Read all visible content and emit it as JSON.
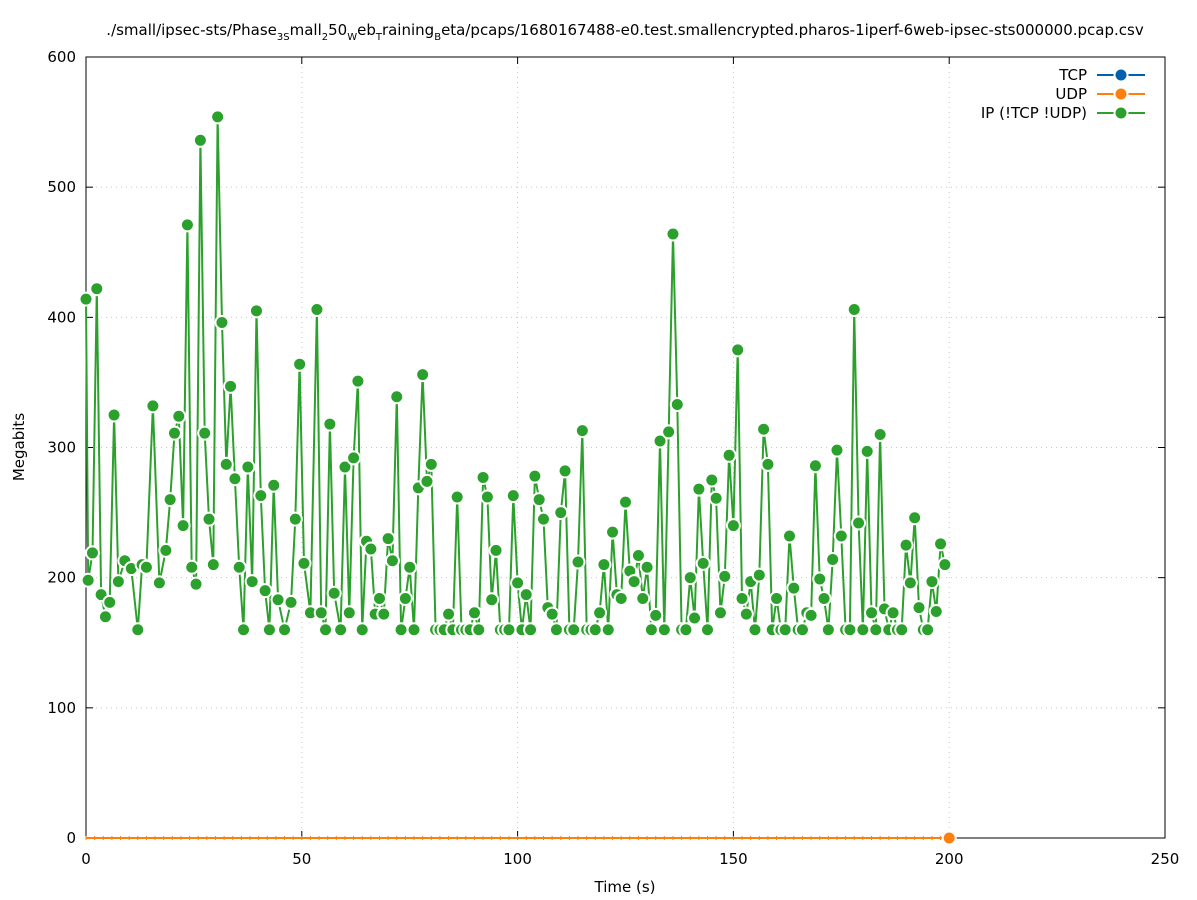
{
  "chart_data": {
    "type": "line",
    "title": {
      "parts": [
        {
          "text": "./small/ipsec-sts/Phase",
          "sub": false
        },
        {
          "text": "3S",
          "sub": true
        },
        {
          "text": "mall",
          "sub": false
        },
        {
          "text": "2",
          "sub": true
        },
        {
          "text": "50",
          "sub": false
        },
        {
          "text": "W",
          "sub": true
        },
        {
          "text": "eb",
          "sub": false
        },
        {
          "text": "T",
          "sub": true
        },
        {
          "text": "raining",
          "sub": false
        },
        {
          "text": "B",
          "sub": true
        },
        {
          "text": "eta/pcaps/1680167488-e0.test.smallencrypted.pharos-1iperf-6web-ipsec-sts000000.pcap.csv",
          "sub": false
        }
      ]
    },
    "xlabel": "Time (s)",
    "ylabel": "Megabits",
    "xlim": [
      0,
      250
    ],
    "ylim": [
      0,
      600
    ],
    "xticks": [
      0,
      50,
      100,
      150,
      200,
      250
    ],
    "yticks": [
      0,
      100,
      200,
      300,
      400,
      500,
      600
    ],
    "grid": true,
    "legend_position": "top-right",
    "series": [
      {
        "name": "TCP",
        "color": "#0060ad",
        "values": []
      },
      {
        "name": "UDP",
        "color": "#ff7f0e",
        "values": [
          [
            0,
            0
          ],
          [
            2,
            0
          ],
          [
            4,
            0
          ],
          [
            6,
            0
          ],
          [
            8,
            0
          ],
          [
            10,
            0
          ],
          [
            12,
            0
          ],
          [
            14,
            0
          ],
          [
            16,
            0
          ],
          [
            18,
            0
          ],
          [
            20,
            0
          ],
          [
            22,
            0
          ],
          [
            24,
            0
          ],
          [
            26,
            0
          ],
          [
            28,
            0
          ],
          [
            30,
            0
          ],
          [
            32,
            0
          ],
          [
            34,
            0
          ],
          [
            36,
            0
          ],
          [
            38,
            0
          ],
          [
            40,
            0
          ],
          [
            42,
            0
          ],
          [
            44,
            0
          ],
          [
            46,
            0
          ],
          [
            48,
            0
          ],
          [
            50,
            0
          ],
          [
            52,
            0
          ],
          [
            54,
            0
          ],
          [
            56,
            0
          ],
          [
            58,
            0
          ],
          [
            60,
            0
          ],
          [
            62,
            0
          ],
          [
            64,
            0
          ],
          [
            66,
            0
          ],
          [
            68,
            0
          ],
          [
            70,
            0
          ],
          [
            72,
            0
          ],
          [
            74,
            0
          ],
          [
            76,
            0
          ],
          [
            78,
            0
          ],
          [
            80,
            0
          ],
          [
            82,
            0
          ],
          [
            84,
            0
          ],
          [
            86,
            0
          ],
          [
            88,
            0
          ],
          [
            90,
            0
          ],
          [
            92,
            0
          ],
          [
            94,
            0
          ],
          [
            96,
            0
          ],
          [
            98,
            0
          ],
          [
            100,
            0
          ],
          [
            102,
            0
          ],
          [
            104,
            0
          ],
          [
            106,
            0
          ],
          [
            108,
            0
          ],
          [
            110,
            0
          ],
          [
            112,
            0
          ],
          [
            114,
            0
          ],
          [
            116,
            0
          ],
          [
            118,
            0
          ],
          [
            120,
            0
          ],
          [
            122,
            0
          ],
          [
            124,
            0
          ],
          [
            126,
            0
          ],
          [
            128,
            0
          ],
          [
            130,
            0
          ],
          [
            132,
            0
          ],
          [
            134,
            0
          ],
          [
            136,
            0
          ],
          [
            138,
            0
          ],
          [
            140,
            0
          ],
          [
            142,
            0
          ],
          [
            144,
            0
          ],
          [
            146,
            0
          ],
          [
            148,
            0
          ],
          [
            150,
            0
          ],
          [
            152,
            0
          ],
          [
            154,
            0
          ],
          [
            156,
            0
          ],
          [
            158,
            0
          ],
          [
            160,
            0
          ],
          [
            162,
            0
          ],
          [
            164,
            0
          ],
          [
            166,
            0
          ],
          [
            168,
            0
          ],
          [
            170,
            0
          ],
          [
            172,
            0
          ],
          [
            174,
            0
          ],
          [
            176,
            0
          ],
          [
            178,
            0
          ],
          [
            180,
            0
          ],
          [
            182,
            0
          ],
          [
            184,
            0
          ],
          [
            186,
            0
          ],
          [
            188,
            0
          ],
          [
            190,
            0
          ],
          [
            192,
            0
          ],
          [
            194,
            0
          ],
          [
            196,
            0
          ],
          [
            198,
            0
          ],
          [
            200,
            0
          ]
        ]
      },
      {
        "name": "IP (!TCP  !UDP)",
        "color": "#2ca02c",
        "values": [
          [
            0,
            414
          ],
          [
            0.5,
            198
          ],
          [
            1.5,
            219
          ],
          [
            2.5,
            422
          ],
          [
            3.5,
            187
          ],
          [
            4.5,
            170
          ],
          [
            5.5,
            181
          ],
          [
            6.5,
            325
          ],
          [
            7.5,
            197
          ],
          [
            9,
            213
          ],
          [
            10.5,
            207
          ],
          [
            12,
            160
          ],
          [
            13,
            210
          ],
          [
            14,
            208
          ],
          [
            15.5,
            332
          ],
          [
            17,
            196
          ],
          [
            18.5,
            221
          ],
          [
            19.5,
            260
          ],
          [
            20.5,
            311
          ],
          [
            21.5,
            324
          ],
          [
            22.5,
            240
          ],
          [
            23.5,
            471
          ],
          [
            24.5,
            208
          ],
          [
            25.5,
            195
          ],
          [
            26.5,
            536
          ],
          [
            27.5,
            311
          ],
          [
            28.5,
            245
          ],
          [
            29.5,
            210
          ],
          [
            30.5,
            554
          ],
          [
            31.5,
            396
          ],
          [
            32.5,
            287
          ],
          [
            33.5,
            347
          ],
          [
            34.5,
            276
          ],
          [
            35.5,
            208
          ],
          [
            36.5,
            160
          ],
          [
            37.5,
            285
          ],
          [
            38.5,
            197
          ],
          [
            39.5,
            405
          ],
          [
            40.5,
            263
          ],
          [
            41.5,
            190
          ],
          [
            42.5,
            160
          ],
          [
            43.5,
            271
          ],
          [
            44.5,
            183
          ],
          [
            46,
            160
          ],
          [
            47.5,
            181
          ],
          [
            48.5,
            245
          ],
          [
            49.5,
            364
          ],
          [
            50.5,
            211
          ],
          [
            52,
            173
          ],
          [
            53.5,
            406
          ],
          [
            54.5,
            173
          ],
          [
            55.5,
            160
          ],
          [
            56.5,
            318
          ],
          [
            57.5,
            188
          ],
          [
            59,
            160
          ],
          [
            60,
            285
          ],
          [
            61,
            173
          ],
          [
            62,
            292
          ],
          [
            63,
            351
          ],
          [
            64,
            160
          ],
          [
            65,
            228
          ],
          [
            66,
            222
          ],
          [
            67,
            172
          ],
          [
            68,
            184
          ],
          [
            69,
            172
          ],
          [
            70,
            230
          ],
          [
            71,
            213
          ],
          [
            72,
            339
          ],
          [
            73,
            160
          ],
          [
            74,
            184
          ],
          [
            75,
            208
          ],
          [
            76,
            160
          ],
          [
            77,
            269
          ],
          [
            78,
            356
          ],
          [
            79,
            274
          ],
          [
            80,
            287
          ],
          [
            81,
            160
          ],
          [
            82,
            160
          ],
          [
            83,
            160
          ],
          [
            84,
            172
          ],
          [
            85,
            160
          ],
          [
            86,
            262
          ],
          [
            87,
            160
          ],
          [
            88,
            160
          ],
          [
            89,
            160
          ],
          [
            90,
            173
          ],
          [
            91,
            160
          ],
          [
            92,
            277
          ],
          [
            93,
            262
          ],
          [
            94,
            183
          ],
          [
            95,
            221
          ],
          [
            96,
            160
          ],
          [
            97,
            160
          ],
          [
            98,
            160
          ],
          [
            99,
            263
          ],
          [
            100,
            196
          ],
          [
            101,
            160
          ],
          [
            102,
            187
          ],
          [
            103,
            160
          ],
          [
            104,
            278
          ],
          [
            105,
            260
          ],
          [
            106,
            245
          ],
          [
            107,
            177
          ],
          [
            108,
            172
          ],
          [
            109,
            160
          ],
          [
            110,
            250
          ],
          [
            111,
            282
          ],
          [
            112,
            160
          ],
          [
            113,
            160
          ],
          [
            114,
            212
          ],
          [
            115,
            313
          ],
          [
            116,
            160
          ],
          [
            117,
            160
          ],
          [
            118,
            160
          ],
          [
            119,
            173
          ],
          [
            120,
            210
          ],
          [
            121,
            160
          ],
          [
            122,
            235
          ],
          [
            123,
            187
          ],
          [
            124,
            184
          ],
          [
            125,
            258
          ],
          [
            126,
            205
          ],
          [
            127,
            197
          ],
          [
            128,
            217
          ],
          [
            129,
            184
          ],
          [
            130,
            208
          ],
          [
            131,
            160
          ],
          [
            132,
            171
          ],
          [
            133,
            305
          ],
          [
            134,
            160
          ],
          [
            135,
            312
          ],
          [
            136,
            464
          ],
          [
            137,
            333
          ],
          [
            138,
            160
          ],
          [
            139,
            160
          ],
          [
            140,
            200
          ],
          [
            141,
            169
          ],
          [
            142,
            268
          ],
          [
            143,
            211
          ],
          [
            144,
            160
          ],
          [
            145,
            275
          ],
          [
            146,
            261
          ],
          [
            147,
            173
          ],
          [
            148,
            201
          ],
          [
            149,
            294
          ],
          [
            150,
            240
          ],
          [
            151,
            375
          ],
          [
            152,
            184
          ],
          [
            153,
            172
          ],
          [
            154,
            197
          ],
          [
            155,
            160
          ],
          [
            156,
            202
          ],
          [
            157,
            314
          ],
          [
            158,
            287
          ],
          [
            159,
            160
          ],
          [
            160,
            184
          ],
          [
            161,
            160
          ],
          [
            162,
            160
          ],
          [
            163,
            232
          ],
          [
            164,
            192
          ],
          [
            165,
            160
          ],
          [
            166,
            160
          ],
          [
            167,
            173
          ],
          [
            168,
            171
          ],
          [
            169,
            286
          ],
          [
            170,
            199
          ],
          [
            171,
            184
          ],
          [
            172,
            160
          ],
          [
            173,
            214
          ],
          [
            174,
            298
          ],
          [
            175,
            232
          ],
          [
            176,
            160
          ],
          [
            177,
            160
          ],
          [
            178,
            406
          ],
          [
            179,
            242
          ],
          [
            180,
            160
          ],
          [
            181,
            297
          ],
          [
            182,
            173
          ],
          [
            183,
            160
          ],
          [
            184,
            310
          ],
          [
            185,
            176
          ],
          [
            186,
            160
          ],
          [
            187,
            173
          ],
          [
            188,
            160
          ],
          [
            189,
            160
          ],
          [
            190,
            225
          ],
          [
            191,
            196
          ],
          [
            192,
            246
          ],
          [
            193,
            177
          ],
          [
            194,
            160
          ],
          [
            195,
            160
          ],
          [
            196,
            197
          ],
          [
            197,
            174
          ],
          [
            198,
            226
          ],
          [
            199,
            210
          ]
        ]
      }
    ]
  }
}
